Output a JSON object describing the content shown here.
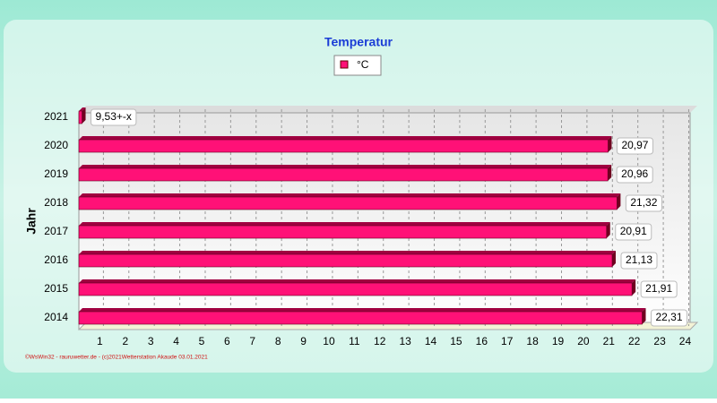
{
  "chart_data": {
    "type": "bar",
    "orientation": "horizontal",
    "title": "Temperatur",
    "y_label": "Jahr",
    "footer": "©WsWin32 - rauruwetter.de - (c)2021Wetterstation Akaude 03.01.2021",
    "annotation": "9,53+-x",
    "categories": [
      "2021",
      "2020",
      "2019",
      "2018",
      "2017",
      "2016",
      "2015",
      "2014"
    ],
    "series": [
      {
        "name": "°C",
        "color": "#ff1177",
        "values": [
          0.3,
          20.97,
          20.96,
          21.32,
          20.91,
          21.13,
          21.91,
          22.31
        ],
        "value_labels": [
          null,
          "20,97",
          "20,96",
          "21,32",
          "20,91",
          "21,13",
          "21,91",
          "22,31"
        ]
      }
    ],
    "xlim": [
      0,
      24.3
    ],
    "xticks": [
      1,
      2,
      3,
      4,
      5,
      6,
      7,
      8,
      9,
      10,
      11,
      12,
      13,
      14,
      15,
      16,
      17,
      18,
      19,
      20,
      21,
      22,
      23,
      24
    ],
    "grid": true
  }
}
